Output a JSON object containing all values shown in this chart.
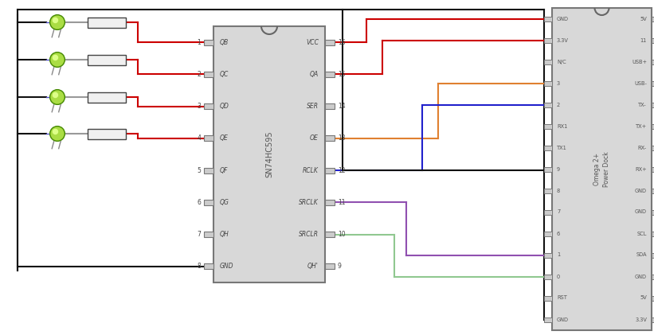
{
  "bg": "#ffffff",
  "RED": "#cc0000",
  "BLACK": "#111111",
  "ORANGE": "#e08030",
  "BLUE": "#2020cc",
  "PURPLE": "#9050b0",
  "LGREEN": "#90c890",
  "GRAY": "#777777",
  "CHIPBG": "#d0d0d0",
  "TEXTC": "#555555",
  "DARKGRAY": "#555555",
  "ic_L": 0.33,
  "ic_R": 0.5,
  "ic_T": 0.92,
  "ic_B": 0.22,
  "om_L": 0.695,
  "om_R": 0.85,
  "om_T": 0.975,
  "om_B": 0.028,
  "ic_left_pins": [
    "QB",
    "QC",
    "QD",
    "QE",
    "QF",
    "QG",
    "QH",
    "GND"
  ],
  "ic_right_pins": [
    "VCC",
    "QA",
    "SER",
    "OE",
    "RCLK",
    "SRCLK",
    "SRCLR",
    "QH'"
  ],
  "ic_left_nums": [
    "1",
    "2",
    "3",
    "4",
    "5",
    "6",
    "7",
    "8"
  ],
  "ic_right_nums": [
    "16",
    "15",
    "14",
    "13",
    "12",
    "11",
    "10",
    "9"
  ],
  "om_left": [
    "GND",
    "3.3V",
    "N/C",
    "3",
    "2",
    "RX1",
    "TX1",
    "9",
    "8",
    "7",
    "6",
    "1",
    "0",
    "RST",
    "GND"
  ],
  "om_right": [
    "5V",
    "11",
    "USB+",
    "USB-",
    "TX-",
    "TX+",
    "RX-",
    "RX+",
    "GND",
    "GND",
    "SCL",
    "SDA",
    "GND",
    "5V",
    "3.3V"
  ]
}
